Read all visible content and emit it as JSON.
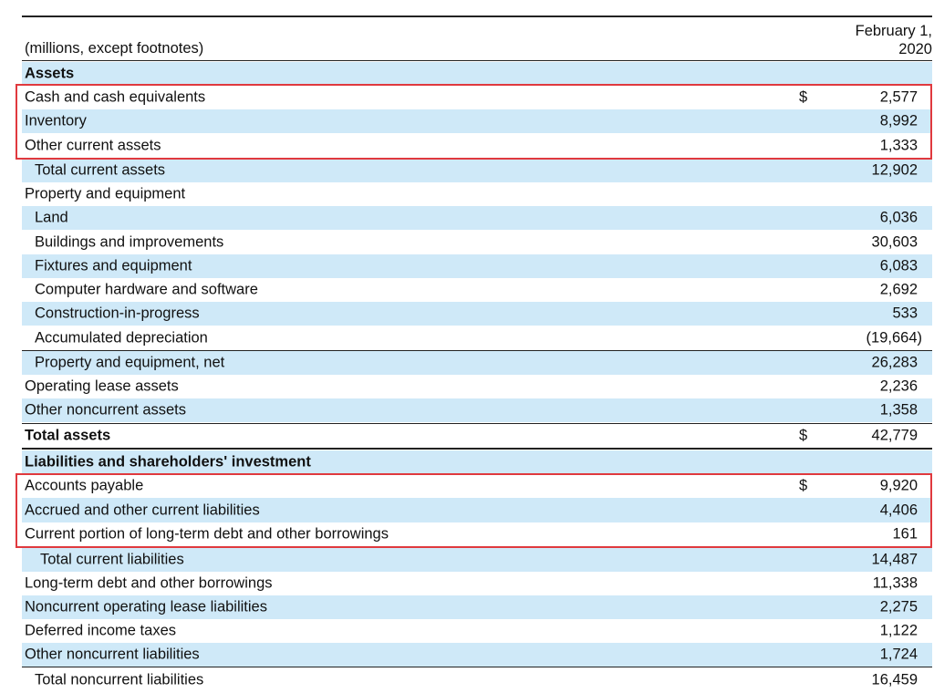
{
  "header": {
    "units_label": "(millions, except footnotes)",
    "date_line1": "February 1,",
    "date_line2": "2020"
  },
  "sections": {
    "assets_heading": "Assets",
    "liabilities_heading": "Liabilities and shareholders' investment"
  },
  "rows": [
    {
      "label": "Cash and cash equivalents",
      "currency": "$",
      "value": "2,577"
    },
    {
      "label": "Inventory",
      "currency": "",
      "value": "8,992"
    },
    {
      "label": "Other current assets",
      "currency": "",
      "value": "1,333"
    },
    {
      "label": "Total current assets",
      "currency": "",
      "value": "12,902"
    },
    {
      "label": "Property and equipment",
      "currency": "",
      "value": ""
    },
    {
      "label": "Land",
      "currency": "",
      "value": "6,036"
    },
    {
      "label": "Buildings and improvements",
      "currency": "",
      "value": "30,603"
    },
    {
      "label": "Fixtures and equipment",
      "currency": "",
      "value": "6,083"
    },
    {
      "label": "Computer hardware and software",
      "currency": "",
      "value": "2,692"
    },
    {
      "label": "Construction-in-progress",
      "currency": "",
      "value": "533"
    },
    {
      "label": "Accumulated depreciation",
      "currency": "",
      "value": "(19,664)"
    },
    {
      "label": "Property and equipment, net",
      "currency": "",
      "value": "26,283"
    },
    {
      "label": "Operating lease assets",
      "currency": "",
      "value": "2,236"
    },
    {
      "label": "Other noncurrent assets",
      "currency": "",
      "value": "1,358"
    },
    {
      "label": "Total assets",
      "currency": "$",
      "value": "42,779"
    },
    {
      "label": "Accounts payable",
      "currency": "$",
      "value": "9,920"
    },
    {
      "label": "Accrued and other current liabilities",
      "currency": "",
      "value": "4,406"
    },
    {
      "label": "Current portion of long-term debt and other borrowings",
      "currency": "",
      "value": "161"
    },
    {
      "label": "Total current liabilities",
      "currency": "",
      "value": "14,487"
    },
    {
      "label": "Long-term debt and other borrowings",
      "currency": "",
      "value": "11,338"
    },
    {
      "label": "Noncurrent operating lease liabilities",
      "currency": "",
      "value": "2,275"
    },
    {
      "label": "Deferred income taxes",
      "currency": "",
      "value": "1,122"
    },
    {
      "label": "Other noncurrent liabilities",
      "currency": "",
      "value": "1,724"
    },
    {
      "label": "Total noncurrent liabilities",
      "currency": "",
      "value": "16,459"
    }
  ],
  "colors": {
    "band": "#cfe9f8",
    "highlight": "#e0393e",
    "rule": "#222222"
  }
}
